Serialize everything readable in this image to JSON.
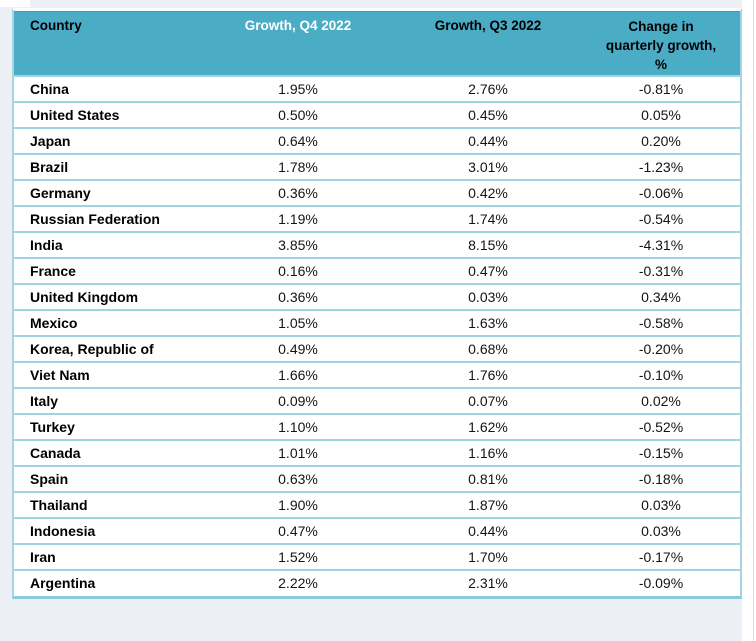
{
  "chart_data": {
    "type": "table",
    "columns": [
      "Country",
      "Growth, Q4 2022",
      "Growth, Q3 2022",
      "Change in quarterly growth, %"
    ],
    "header_display": [
      "Country",
      "Growth, Q4 2022",
      "Growth, Q3 2022",
      "Change in\nquarterly growth,\n%"
    ],
    "rows": [
      [
        "China",
        "1.95%",
        "2.76%",
        "-0.81%"
      ],
      [
        "United States",
        "0.50%",
        "0.45%",
        "0.05%"
      ],
      [
        "Japan",
        "0.64%",
        "0.44%",
        "0.20%"
      ],
      [
        "Brazil",
        "1.78%",
        "3.01%",
        "-1.23%"
      ],
      [
        "Germany",
        "0.36%",
        "0.42%",
        "-0.06%"
      ],
      [
        "Russian Federation",
        "1.19%",
        "1.74%",
        "-0.54%"
      ],
      [
        "India",
        "3.85%",
        "8.15%",
        "-4.31%"
      ],
      [
        "France",
        "0.16%",
        "0.47%",
        "-0.31%"
      ],
      [
        "United Kingdom",
        "0.36%",
        "0.03%",
        "0.34%"
      ],
      [
        "Mexico",
        "1.05%",
        "1.63%",
        "-0.58%"
      ],
      [
        "Korea, Republic of",
        "0.49%",
        "0.68%",
        "-0.20%"
      ],
      [
        "Viet Nam",
        "1.66%",
        "1.76%",
        "-0.10%"
      ],
      [
        "Italy",
        "0.09%",
        "0.07%",
        "0.02%"
      ],
      [
        "Turkey",
        "1.10%",
        "1.62%",
        "-0.52%"
      ],
      [
        "Canada",
        "1.01%",
        "1.16%",
        "-0.15%"
      ],
      [
        "Spain",
        "0.63%",
        "0.81%",
        "-0.18%"
      ],
      [
        "Thailand",
        "1.90%",
        "1.87%",
        "0.03%"
      ],
      [
        "Indonesia",
        "0.47%",
        "0.44%",
        "0.03%"
      ],
      [
        "Iran",
        "1.52%",
        "1.70%",
        "-0.17%"
      ],
      [
        "Argentina",
        "2.22%",
        "2.31%",
        "-0.09%"
      ]
    ],
    "colors": {
      "header_background": "#4BACC6",
      "header_text_q4_column": "#FFFFFF",
      "header_text": "#000000",
      "row_separator": "#9FD2E2",
      "table_bottom_border": "#8CC9DB",
      "page_background": "#ECEFF4",
      "table_background": "#FFFFFF"
    },
    "layout": {
      "legend": "none",
      "grid": "horizontal-separators"
    }
  }
}
